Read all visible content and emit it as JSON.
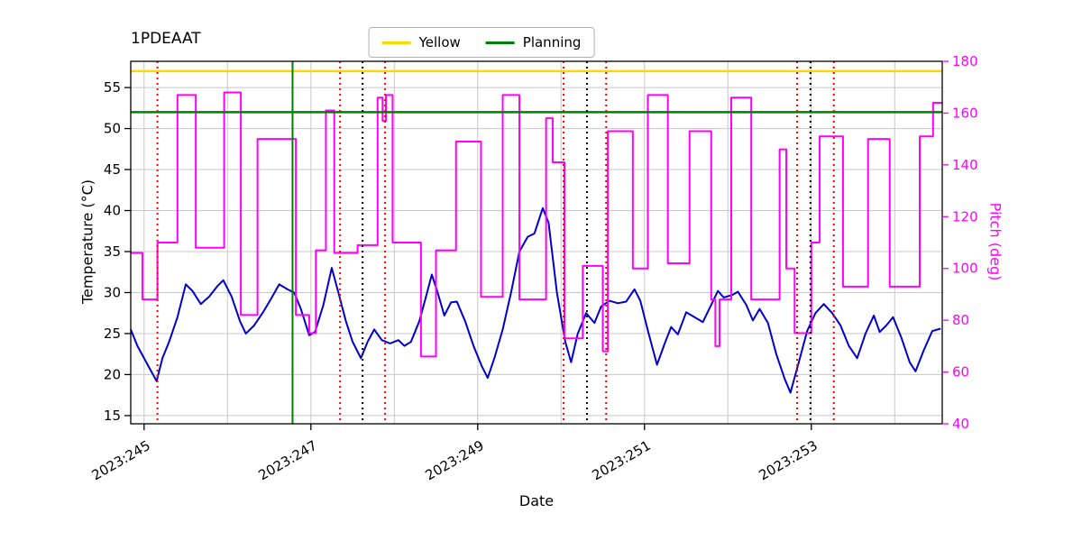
{
  "chart_data": {
    "type": "line",
    "title": "1PDEAAT",
    "xlabel": "Date",
    "ylabel_left": "Temperature (°C)",
    "ylabel_right": "Pitch (deg)",
    "xlim": [
      244.84,
      254.57
    ],
    "ylim_left": [
      14.0,
      58.2
    ],
    "ylim_right": [
      40,
      180
    ],
    "xticks": [
      245,
      247,
      249,
      251,
      253
    ],
    "xtick_labels": [
      "2023:245",
      "2023:247",
      "2023:249",
      "2023:251",
      "2023:253"
    ],
    "xgridlines": [
      245,
      246,
      247,
      248,
      249,
      250,
      251,
      252,
      253,
      254
    ],
    "yticks_left": [
      15,
      20,
      25,
      30,
      35,
      40,
      45,
      50,
      55
    ],
    "yticks_right": [
      40,
      60,
      80,
      100,
      120,
      140,
      160,
      180
    ],
    "grid_on": true,
    "grid_color": "#c8c8c8",
    "right_axis_color": "#ff00ff",
    "legend": {
      "position": "upper center",
      "items": [
        {
          "label": "Yellow",
          "color": "#ffd700"
        },
        {
          "label": "Planning",
          "color": "#008000"
        }
      ]
    },
    "hlines": [
      {
        "name": "yellow-limit",
        "y": 57.0,
        "color": "#ffd700",
        "style": "solid"
      },
      {
        "name": "planning-limit",
        "y": 52.0,
        "color": "#008000",
        "style": "solid"
      }
    ],
    "vlines": [
      {
        "x": 246.78,
        "color": "#008000",
        "style": "solid"
      },
      {
        "x": 245.16,
        "color": "#ff0000",
        "style": "dotted"
      },
      {
        "x": 247.35,
        "color": "#ff0000",
        "style": "dotted"
      },
      {
        "x": 247.89,
        "color": "#ff0000",
        "style": "dotted"
      },
      {
        "x": 250.03,
        "color": "#ff0000",
        "style": "dotted"
      },
      {
        "x": 250.54,
        "color": "#ff0000",
        "style": "dotted"
      },
      {
        "x": 252.83,
        "color": "#ff0000",
        "style": "dotted"
      },
      {
        "x": 253.27,
        "color": "#ff0000",
        "style": "dotted"
      },
      {
        "x": 247.62,
        "color": "#000000",
        "style": "dotted"
      },
      {
        "x": 250.31,
        "color": "#000000",
        "style": "dotted"
      },
      {
        "x": 252.99,
        "color": "#000000",
        "style": "dotted"
      }
    ],
    "series": [
      {
        "name": "temperature",
        "axis": "left",
        "color": "#0000cd",
        "step": false,
        "points": [
          [
            244.84,
            25.5
          ],
          [
            244.92,
            23.5
          ],
          [
            245.0,
            22.0
          ],
          [
            245.08,
            20.5
          ],
          [
            245.15,
            19.2
          ],
          [
            245.22,
            22.0
          ],
          [
            245.3,
            24.0
          ],
          [
            245.4,
            27.0
          ],
          [
            245.5,
            31.0
          ],
          [
            245.58,
            30.2
          ],
          [
            245.68,
            28.6
          ],
          [
            245.78,
            29.5
          ],
          [
            245.88,
            30.8
          ],
          [
            245.95,
            31.5
          ],
          [
            246.05,
            29.5
          ],
          [
            246.15,
            26.5
          ],
          [
            246.22,
            25.0
          ],
          [
            246.32,
            26.0
          ],
          [
            246.42,
            27.5
          ],
          [
            246.52,
            29.2
          ],
          [
            246.62,
            31.0
          ],
          [
            246.72,
            30.4
          ],
          [
            246.8,
            30.0
          ],
          [
            246.88,
            28.0
          ],
          [
            246.98,
            24.8
          ],
          [
            247.05,
            25.2
          ],
          [
            247.15,
            28.5
          ],
          [
            247.25,
            33.0
          ],
          [
            247.33,
            30.0
          ],
          [
            247.42,
            26.5
          ],
          [
            247.5,
            24.0
          ],
          [
            247.6,
            22.0
          ],
          [
            247.68,
            24.0
          ],
          [
            247.76,
            25.5
          ],
          [
            247.85,
            24.2
          ],
          [
            247.95,
            23.8
          ],
          [
            248.05,
            24.2
          ],
          [
            248.12,
            23.5
          ],
          [
            248.2,
            24.0
          ],
          [
            248.3,
            26.5
          ],
          [
            248.38,
            29.5
          ],
          [
            248.45,
            32.2
          ],
          [
            248.52,
            30.0
          ],
          [
            248.6,
            27.2
          ],
          [
            248.68,
            28.8
          ],
          [
            248.75,
            28.9
          ],
          [
            248.85,
            26.5
          ],
          [
            248.95,
            23.5
          ],
          [
            249.05,
            21.0
          ],
          [
            249.12,
            19.6
          ],
          [
            249.2,
            22.0
          ],
          [
            249.3,
            25.5
          ],
          [
            249.4,
            30.0
          ],
          [
            249.5,
            35.0
          ],
          [
            249.6,
            36.8
          ],
          [
            249.68,
            37.2
          ],
          [
            249.78,
            40.3
          ],
          [
            249.85,
            38.5
          ],
          [
            249.95,
            30.0
          ],
          [
            250.05,
            24.0
          ],
          [
            250.12,
            21.5
          ],
          [
            250.2,
            25.0
          ],
          [
            250.3,
            27.5
          ],
          [
            250.4,
            26.3
          ],
          [
            250.48,
            28.3
          ],
          [
            250.58,
            29.0
          ],
          [
            250.68,
            28.7
          ],
          [
            250.78,
            28.9
          ],
          [
            250.88,
            30.4
          ],
          [
            250.95,
            29.0
          ],
          [
            251.05,
            25.0
          ],
          [
            251.15,
            21.2
          ],
          [
            251.25,
            24.0
          ],
          [
            251.32,
            25.8
          ],
          [
            251.4,
            24.9
          ],
          [
            251.5,
            27.6
          ],
          [
            251.6,
            27.0
          ],
          [
            251.7,
            26.4
          ],
          [
            251.8,
            28.5
          ],
          [
            251.88,
            30.2
          ],
          [
            251.95,
            29.4
          ],
          [
            252.05,
            29.7
          ],
          [
            252.12,
            30.1
          ],
          [
            252.22,
            28.5
          ],
          [
            252.3,
            26.6
          ],
          [
            252.38,
            28.0
          ],
          [
            252.48,
            26.3
          ],
          [
            252.58,
            22.5
          ],
          [
            252.68,
            19.5
          ],
          [
            252.75,
            17.8
          ],
          [
            252.85,
            21.5
          ],
          [
            252.95,
            25.3
          ],
          [
            253.05,
            27.5
          ],
          [
            253.15,
            28.6
          ],
          [
            253.25,
            27.5
          ],
          [
            253.35,
            26.0
          ],
          [
            253.45,
            23.5
          ],
          [
            253.55,
            22.0
          ],
          [
            253.65,
            25.0
          ],
          [
            253.75,
            27.2
          ],
          [
            253.82,
            25.2
          ],
          [
            253.9,
            26.0
          ],
          [
            253.98,
            27.0
          ],
          [
            254.08,
            24.5
          ],
          [
            254.18,
            21.5
          ],
          [
            254.25,
            20.4
          ],
          [
            254.35,
            23.0
          ],
          [
            254.45,
            25.3
          ],
          [
            254.55,
            25.6
          ]
        ]
      },
      {
        "name": "pitch",
        "axis": "right",
        "color": "#ff00ff",
        "step": true,
        "points": [
          [
            244.84,
            106
          ],
          [
            244.98,
            88
          ],
          [
            245.16,
            110
          ],
          [
            245.4,
            167
          ],
          [
            245.62,
            108
          ],
          [
            245.96,
            168
          ],
          [
            246.16,
            82
          ],
          [
            246.36,
            150
          ],
          [
            246.82,
            82
          ],
          [
            246.98,
            75
          ],
          [
            247.06,
            107
          ],
          [
            247.18,
            161
          ],
          [
            247.28,
            106
          ],
          [
            247.56,
            109
          ],
          [
            247.8,
            166
          ],
          [
            247.86,
            157
          ],
          [
            247.9,
            167
          ],
          [
            247.98,
            110
          ],
          [
            248.32,
            66
          ],
          [
            248.5,
            107
          ],
          [
            248.74,
            149
          ],
          [
            249.04,
            89
          ],
          [
            249.3,
            167
          ],
          [
            249.5,
            88
          ],
          [
            249.82,
            158
          ],
          [
            249.9,
            141
          ],
          [
            250.04,
            73
          ],
          [
            250.26,
            101
          ],
          [
            250.5,
            68
          ],
          [
            250.56,
            153
          ],
          [
            250.86,
            100
          ],
          [
            251.04,
            167
          ],
          [
            251.28,
            102
          ],
          [
            251.54,
            153
          ],
          [
            251.8,
            88
          ],
          [
            251.85,
            70
          ],
          [
            251.9,
            88
          ],
          [
            252.04,
            166
          ],
          [
            252.28,
            88
          ],
          [
            252.62,
            146
          ],
          [
            252.7,
            100
          ],
          [
            252.8,
            75
          ],
          [
            253.0,
            110
          ],
          [
            253.1,
            151
          ],
          [
            253.38,
            93
          ],
          [
            253.68,
            150
          ],
          [
            253.94,
            93
          ],
          [
            254.3,
            151
          ],
          [
            254.46,
            164
          ]
        ]
      }
    ]
  }
}
